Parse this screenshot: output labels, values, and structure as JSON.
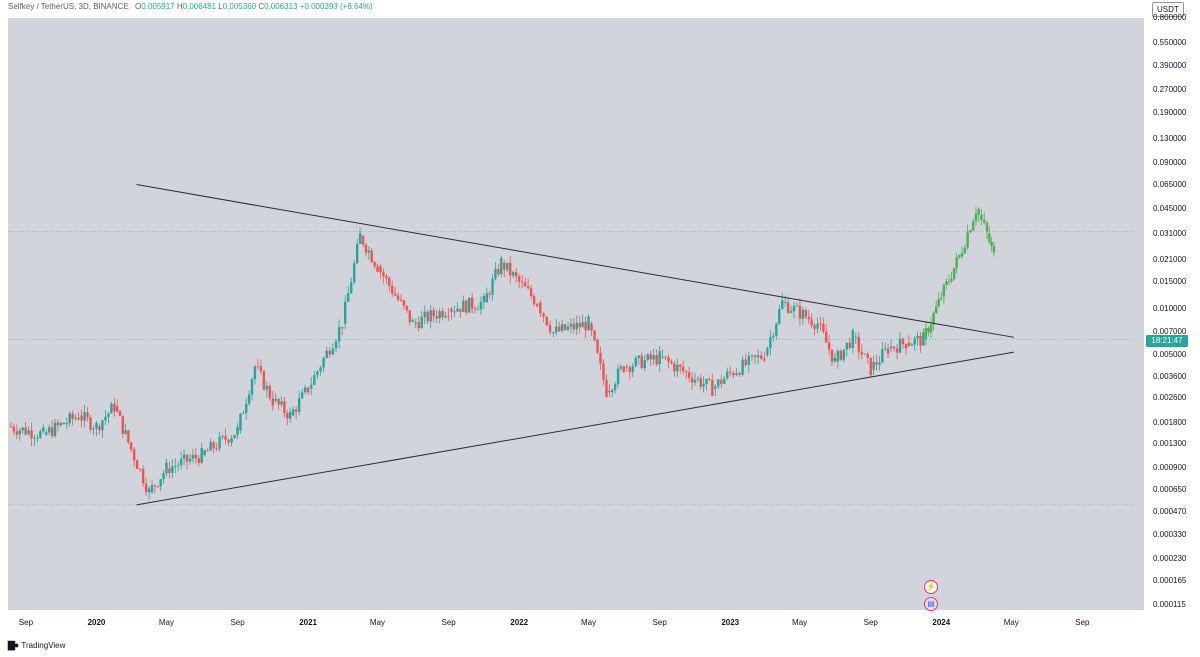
{
  "header": {
    "symbol": "Selfkey / TetherUS, 3D, BINANCE",
    "o_label": "O",
    "o": "0.005917",
    "h_label": "H",
    "h": "0.006481",
    "l_label": "L",
    "l": "0.005360",
    "c_label": "C",
    "c": "0.006313",
    "change": "+0.000393 (+6.64%)"
  },
  "currency": "USDT",
  "price_countdown": "18:21:47",
  "branding": "TradingView",
  "colors": {
    "up": "#26a69a",
    "down": "#ef5350",
    "projection": "#4caf50",
    "background": "#d2d4db",
    "trendline": "#2a2e39"
  },
  "icons": [
    "lightning-icon",
    "us-flag-icon",
    "tradingview-logo-icon"
  ],
  "chart_data": {
    "type": "candlestick",
    "y_scale": "log",
    "ylim": [
      0.0001,
      0.8
    ],
    "y_ticks": [
      "0.800000",
      "0.550000",
      "0.390000",
      "0.270000",
      "0.190000",
      "0.130000",
      "0.090000",
      "0.065000",
      "0.045000",
      "0.031000",
      "0.021000",
      "0.015000",
      "0.010000",
      "0.007000",
      "0.005000",
      "0.003600",
      "0.002600",
      "0.001800",
      "0.001300",
      "0.000900",
      "0.000650",
      "0.000470",
      "0.000330",
      "0.000230",
      "0.000165",
      "0.000115"
    ],
    "x_ticks": [
      {
        "label": "Sep",
        "bold": false
      },
      {
        "label": "2020",
        "bold": true
      },
      {
        "label": "May",
        "bold": false
      },
      {
        "label": "Sep",
        "bold": false
      },
      {
        "label": "2021",
        "bold": true
      },
      {
        "label": "May",
        "bold": false
      },
      {
        "label": "Sep",
        "bold": false
      },
      {
        "label": "2022",
        "bold": true
      },
      {
        "label": "May",
        "bold": false
      },
      {
        "label": "Sep",
        "bold": false
      },
      {
        "label": "2023",
        "bold": true
      },
      {
        "label": "May",
        "bold": false
      },
      {
        "label": "Sep",
        "bold": false
      },
      {
        "label": "2024",
        "bold": true
      },
      {
        "label": "May",
        "bold": false
      },
      {
        "label": "Sep",
        "bold": false
      }
    ],
    "x_dates": [
      "2019-09",
      "2020-01",
      "2020-05",
      "2020-09",
      "2021-01",
      "2021-05",
      "2021-09",
      "2022-01",
      "2022-05",
      "2022-09",
      "2023-01",
      "2023-05",
      "2023-09",
      "2024-01",
      "2024-05",
      "2024-09"
    ],
    "price_path": [
      [
        "2019-08",
        0.0017
      ],
      [
        "2019-10",
        0.0015
      ],
      [
        "2019-12",
        0.002
      ],
      [
        "2020-01",
        0.0017
      ],
      [
        "2020-02",
        0.0023
      ],
      [
        "2020-03",
        0.0012
      ],
      [
        "2020-04",
        0.00063
      ],
      [
        "2020-05",
        0.0009
      ],
      [
        "2020-07",
        0.0011
      ],
      [
        "2020-09",
        0.0016
      ],
      [
        "2020-10",
        0.0042
      ],
      [
        "2020-11",
        0.0025
      ],
      [
        "2020-12",
        0.002
      ],
      [
        "2021-01",
        0.003
      ],
      [
        "2021-03",
        0.008
      ],
      [
        "2021-04",
        0.03
      ],
      [
        "2021-05",
        0.019
      ],
      [
        "2021-07",
        0.008
      ],
      [
        "2021-09",
        0.01
      ],
      [
        "2021-11",
        0.011
      ],
      [
        "2021-12",
        0.02
      ],
      [
        "2022-02",
        0.011
      ],
      [
        "2022-03",
        0.007
      ],
      [
        "2022-05",
        0.008
      ],
      [
        "2022-06",
        0.0029
      ],
      [
        "2022-07",
        0.0042
      ],
      [
        "2022-09",
        0.0048
      ],
      [
        "2022-11",
        0.0035
      ],
      [
        "2022-12",
        0.003
      ],
      [
        "2023-01",
        0.0038
      ],
      [
        "2023-03",
        0.005
      ],
      [
        "2023-04",
        0.011
      ],
      [
        "2023-06",
        0.008
      ],
      [
        "2023-07",
        0.0045
      ],
      [
        "2023-08",
        0.0065
      ],
      [
        "2023-09",
        0.004
      ],
      [
        "2023-10",
        0.0055
      ],
      [
        "2023-11",
        0.006
      ],
      [
        "2023-12",
        0.0063
      ]
    ],
    "projection_path": [
      [
        "2023-12",
        0.0063
      ],
      [
        "2024-01",
        0.012
      ],
      [
        "2024-02",
        0.022
      ],
      [
        "2024-03",
        0.045
      ],
      [
        "2024-03-20",
        0.031
      ],
      [
        "2024-04",
        0.022
      ]
    ],
    "last_price": 0.006313,
    "resistance_line": [
      [
        "2020-01",
        0.065
      ],
      [
        "2024-04",
        0.0065
      ]
    ],
    "support_line": [
      [
        "2020-01",
        0.00052
      ],
      [
        "2024-04",
        0.0052
      ]
    ],
    "dotted_levels": [
      0.032,
      0.00052
    ]
  }
}
